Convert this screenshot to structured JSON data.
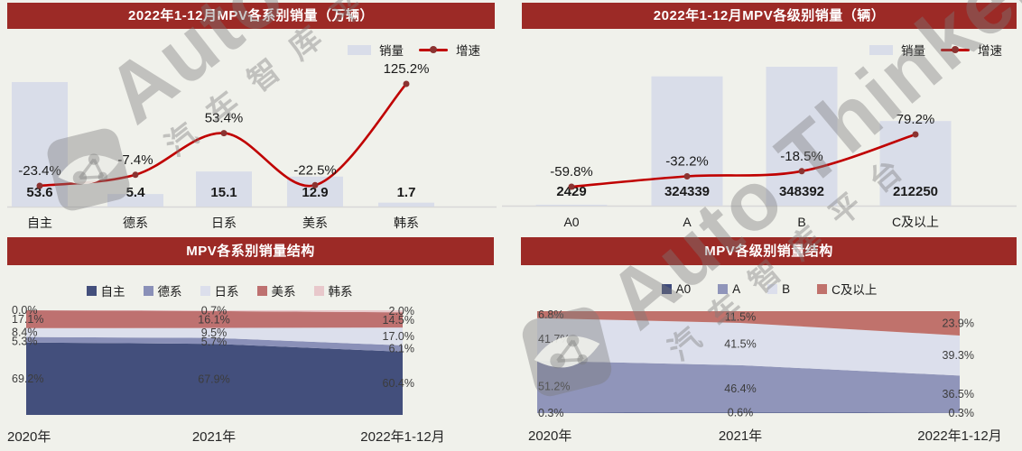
{
  "page": {
    "background": "#F0F1EB"
  },
  "watermark": {
    "brand": "Auto Thinker",
    "cn": "汽车智库平台"
  },
  "palette": {
    "header_bg": "#9C2A26",
    "header_text": "#FFFFFF",
    "bar_fill": "#D9DDE9",
    "line_color": "#C00000",
    "marker_color": "#8B3331",
    "axis_line": "#D8D8D8",
    "label_dark": "#1A1A1A",
    "share_label": "#3C3C3C"
  },
  "chart_data": [
    {
      "id": "series-sales",
      "type": "bar",
      "title": "2022年1-12月MPV各系别销量（万辆）",
      "categories": [
        "自主",
        "德系",
        "日系",
        "美系",
        "韩系"
      ],
      "bar_series": {
        "name": "销量",
        "values": [
          53.6,
          5.4,
          15.1,
          12.9,
          1.7
        ],
        "format": "fixed1"
      },
      "line_series": {
        "name": "增速",
        "unit": "%",
        "values": [
          -23.4,
          -7.4,
          53.4,
          -22.5,
          125.2
        ]
      },
      "ylim": [
        0,
        55
      ],
      "legend_position": "top-right"
    },
    {
      "id": "class-sales",
      "type": "bar",
      "title": "2022年1-12月MPV各级别销量（辆）",
      "categories": [
        "A0",
        "A",
        "B",
        "C及以上"
      ],
      "bar_series": {
        "name": "销量",
        "values": [
          2429,
          324339,
          348392,
          212250
        ],
        "format": "int"
      },
      "line_series": {
        "name": "增速",
        "unit": "%",
        "values": [
          -59.8,
          -32.2,
          -18.5,
          79.2
        ]
      },
      "ylim": [
        0,
        360000
      ],
      "legend_position": "top-right"
    },
    {
      "id": "series-structure",
      "type": "area",
      "title": "MPV各系别销量结构",
      "categories": [
        "2020年",
        "2021年",
        "2022年1-12月"
      ],
      "unit": "%",
      "series": [
        {
          "name": "自主",
          "color": "#434F7C",
          "values": [
            69.2,
            67.9,
            60.4
          ]
        },
        {
          "name": "德系",
          "color": "#8A90B8",
          "values": [
            5.3,
            5.7,
            6.1
          ]
        },
        {
          "name": "日系",
          "color": "#DCDFEC",
          "values": [
            8.4,
            9.5,
            17.0
          ]
        },
        {
          "name": "美系",
          "color": "#BE7170",
          "values": [
            17.1,
            16.1,
            14.5
          ]
        },
        {
          "name": "韩系",
          "color": "#E8C8CB",
          "values": [
            0.0,
            0.7,
            2.0
          ]
        }
      ],
      "ylim": [
        0,
        100
      ],
      "legend_position": "top-center"
    },
    {
      "id": "class-structure",
      "type": "area",
      "title": "MPV各级别销量结构",
      "categories": [
        "2020年",
        "2021年",
        "2022年1-12月"
      ],
      "unit": "%",
      "series": [
        {
          "name": "A0",
          "color": "#3E4A7B",
          "values": [
            0.3,
            0.6,
            0.3
          ]
        },
        {
          "name": "A",
          "color": "#9095BA",
          "values": [
            51.2,
            46.4,
            36.5
          ]
        },
        {
          "name": "B",
          "color": "#DCDFEC",
          "values": [
            41.7,
            41.5,
            39.3
          ]
        },
        {
          "name": "C及以上",
          "color": "#C0726C",
          "values": [
            6.8,
            11.5,
            23.9
          ]
        }
      ],
      "ylim": [
        0,
        100
      ],
      "legend_position": "top-center"
    }
  ]
}
